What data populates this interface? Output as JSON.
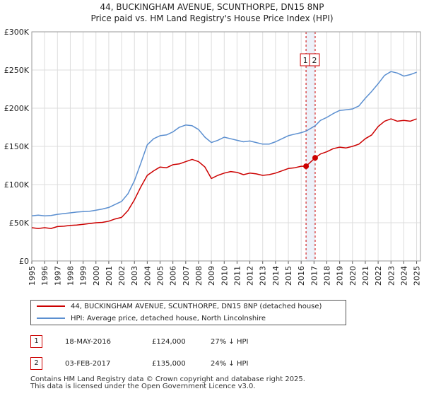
{
  "title_line1": "44, BUCKINGHAM AVENUE, SCUNTHORPE, DN15 8NP",
  "title_line2": "Price paid vs. HM Land Registry's House Price Index (HPI)",
  "chart_data": {
    "type": "line",
    "title": "44, BUCKINGHAM AVENUE, SCUNTHORPE, DN15 8NP — Price paid vs. HM Land Registry's House Price Index (HPI)",
    "xlabel": "",
    "ylabel": "",
    "xlim": [
      1995,
      2025.3
    ],
    "ylim": [
      0,
      300000
    ],
    "y_ticks": [
      0,
      50000,
      100000,
      150000,
      200000,
      250000,
      300000
    ],
    "y_tick_labels": [
      "£0",
      "£50K",
      "£100K",
      "£150K",
      "£200K",
      "£250K",
      "£300K"
    ],
    "x_ticks": [
      1995,
      1996,
      1997,
      1998,
      1999,
      2000,
      2001,
      2002,
      2003,
      2004,
      2005,
      2006,
      2007,
      2008,
      2009,
      2010,
      2011,
      2012,
      2013,
      2014,
      2015,
      2016,
      2017,
      2018,
      2019,
      2020,
      2021,
      2022,
      2023,
      2024,
      2025
    ],
    "x_tick_labels": [
      "1995",
      "1996",
      "1997",
      "1998",
      "1999",
      "2000",
      "2001",
      "2002",
      "2003",
      "2004",
      "2005",
      "2006",
      "2007",
      "2008",
      "2009",
      "2010",
      "2011",
      "2012",
      "2013",
      "2014",
      "2015",
      "2016",
      "2017",
      "2018",
      "2019",
      "2020",
      "2021",
      "2022",
      "2023",
      "2024",
      "2025"
    ],
    "grid": true,
    "series": [
      {
        "name": "44, BUCKINGHAM AVENUE, SCUNTHORPE, DN15 8NP (detached house)",
        "color": "#cc0000",
        "x": [
          1995.0,
          1995.5,
          1996.0,
          1996.5,
          1997.0,
          1997.5,
          1998.0,
          1998.5,
          1999.0,
          1999.5,
          2000.0,
          2000.5,
          2001.0,
          2001.5,
          2002.0,
          2002.5,
          2003.0,
          2003.5,
          2004.0,
          2004.5,
          2005.0,
          2005.5,
          2006.0,
          2006.5,
          2007.0,
          2007.5,
          2008.0,
          2008.5,
          2009.0,
          2009.5,
          2010.0,
          2010.5,
          2011.0,
          2011.5,
          2012.0,
          2012.5,
          2013.0,
          2013.5,
          2014.0,
          2014.5,
          2015.0,
          2015.5,
          2016.0,
          2016.38,
          2017.09,
          2017.5,
          2018.0,
          2018.5,
          2019.0,
          2019.5,
          2020.0,
          2020.5,
          2021.0,
          2021.5,
          2022.0,
          2022.5,
          2023.0,
          2023.5,
          2024.0,
          2024.5,
          2025.0
        ],
        "values": [
          43500,
          42500,
          43500,
          42500,
          45000,
          45500,
          46500,
          47000,
          48000,
          49000,
          50000,
          50500,
          52000,
          55000,
          57000,
          66000,
          80000,
          97000,
          112000,
          118000,
          123000,
          122000,
          126000,
          127000,
          130000,
          133000,
          130000,
          123000,
          108000,
          112000,
          115000,
          117000,
          116000,
          113000,
          115000,
          114000,
          112000,
          113000,
          115000,
          118000,
          121000,
          122000,
          124000,
          124000,
          135000,
          140000,
          143000,
          147000,
          149000,
          148000,
          150000,
          153000,
          160000,
          165000,
          176000,
          183000,
          186000,
          183000,
          184000,
          183000,
          186000
        ]
      },
      {
        "name": "HPI: Average price, detached house, North Lincolnshire",
        "color": "#5b8fd0",
        "x": [
          1995.0,
          1995.5,
          1996.0,
          1996.5,
          1997.0,
          1997.5,
          1998.0,
          1998.5,
          1999.0,
          1999.5,
          2000.0,
          2000.5,
          2001.0,
          2001.5,
          2002.0,
          2002.5,
          2003.0,
          2003.5,
          2004.0,
          2004.5,
          2005.0,
          2005.5,
          2006.0,
          2006.5,
          2007.0,
          2007.5,
          2008.0,
          2008.5,
          2009.0,
          2009.5,
          2010.0,
          2010.5,
          2011.0,
          2011.5,
          2012.0,
          2012.5,
          2013.0,
          2013.5,
          2014.0,
          2014.5,
          2015.0,
          2015.5,
          2016.0,
          2016.38,
          2017.09,
          2017.5,
          2018.0,
          2018.5,
          2019.0,
          2019.5,
          2020.0,
          2020.5,
          2021.0,
          2021.5,
          2022.0,
          2022.5,
          2023.0,
          2023.5,
          2024.0,
          2024.5,
          2025.0
        ],
        "values": [
          59000,
          60000,
          59000,
          59500,
          61000,
          62000,
          63000,
          64000,
          64500,
          65000,
          66500,
          68000,
          70000,
          74000,
          78000,
          88000,
          105000,
          128000,
          152000,
          160000,
          164000,
          165000,
          169000,
          175000,
          178000,
          177000,
          172000,
          162000,
          155000,
          158000,
          162000,
          160000,
          158000,
          156000,
          157000,
          155000,
          153000,
          153000,
          156000,
          160000,
          164000,
          166000,
          168000,
          170000,
          177000,
          184000,
          188000,
          193000,
          197000,
          198000,
          199000,
          203000,
          213000,
          222000,
          232000,
          243000,
          248000,
          246000,
          242000,
          244000,
          247000
        ]
      }
    ],
    "annotations": [
      {
        "label": "1",
        "x": 2016.38,
        "value": 124000
      },
      {
        "label": "2",
        "x": 2017.09,
        "value": 135000
      }
    ]
  },
  "legend": {
    "red_label": "44, BUCKINGHAM AVENUE, SCUNTHORPE, DN15 8NP (detached house)",
    "blue_label": "HPI: Average price, detached house, North Lincolnshire"
  },
  "transactions": [
    {
      "num": "1",
      "date": "18-MAY-2016",
      "price": "£124,000",
      "hpi": "27% ↓ HPI"
    },
    {
      "num": "2",
      "date": "03-FEB-2017",
      "price": "£135,000",
      "hpi": "24% ↓ HPI"
    }
  ],
  "footer": {
    "line1": "Contains HM Land Registry data © Crown copyright and database right 2025.",
    "line2": "This data is licensed under the Open Government Licence v3.0."
  }
}
